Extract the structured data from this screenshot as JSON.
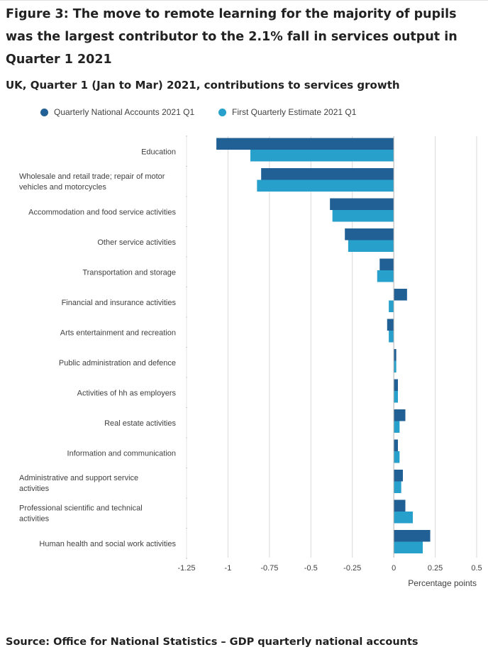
{
  "title": "Figure 3: The move to remote learning for the majority of pupils was the largest contributor to the 2.1% fall in services output in Quarter 1 2021",
  "subtitle": "UK, Quarter 1 (Jan to Mar) 2021, contributions to services growth",
  "source": "Source: Office for National Statistics – GDP quarterly national accounts",
  "colors": {
    "series1": "#206095",
    "series2": "#27a0cc",
    "grid": "#d9d9d9",
    "text": "#414042"
  },
  "chart_data": {
    "type": "bar",
    "orientation": "horizontal",
    "title": "UK, Quarter 1 (Jan to Mar) 2021, contributions to services growth",
    "xlabel": "Percentage points",
    "ylabel": "",
    "xlim": [
      -1.25,
      0.5
    ],
    "xticks": [
      -1.25,
      -1,
      -0.75,
      -0.5,
      -0.25,
      0,
      0.25,
      0.5
    ],
    "xtick_labels": [
      "-1.25",
      "-1",
      "-0.75",
      "-0.5",
      "-0.25",
      "0",
      "0.25",
      "0.5"
    ],
    "grid": true,
    "legend_position": "top-left",
    "categories": [
      "Education",
      "Wholesale and retail trade; repair of motor vehicles and motorcycles",
      "Accommodation and food service activities",
      "Other service activities",
      "Transportation and storage",
      "Financial and insurance activities",
      "Arts entertainment and recreation",
      "Public administration and defence",
      "Activities of hh as employers",
      "Real estate activities",
      "Information and communication",
      "Administrative and support service activities",
      "Professional scientific and technical activities",
      "Human health and social work activities"
    ],
    "category_lines": [
      [
        "Education"
      ],
      [
        "Wholesale and retail trade; repair of motor",
        "vehicles and motorcycles"
      ],
      [
        "Accommodation and food service activities"
      ],
      [
        "Other service activities"
      ],
      [
        "Transportation and storage"
      ],
      [
        "Financial and insurance activities"
      ],
      [
        "Arts entertainment and recreation"
      ],
      [
        "Public administration and defence"
      ],
      [
        "Activities of hh as employers"
      ],
      [
        "Real estate activities"
      ],
      [
        "Information and communication"
      ],
      [
        "Administrative and support service",
        "activities"
      ],
      [
        "Professional scientific and technical",
        "activities"
      ],
      [
        "Human health and social work activities"
      ]
    ],
    "series": [
      {
        "name": "Quarterly National Accounts 2021 Q1",
        "values": [
          -1.07,
          -0.8,
          -0.385,
          -0.295,
          -0.085,
          0.08,
          -0.04,
          0.015,
          0.025,
          0.07,
          0.025,
          0.055,
          0.07,
          0.22
        ]
      },
      {
        "name": "First Quarterly Estimate 2021 Q1",
        "values": [
          -0.865,
          -0.825,
          -0.37,
          -0.275,
          -0.1,
          -0.03,
          -0.03,
          0.015,
          0.025,
          0.035,
          0.035,
          0.045,
          0.115,
          0.175
        ]
      }
    ]
  }
}
